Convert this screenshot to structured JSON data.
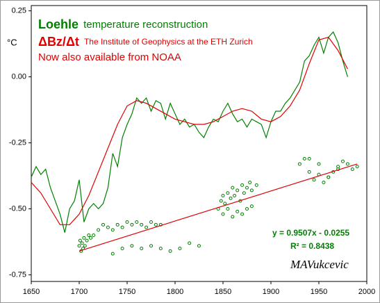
{
  "chart_data": {
    "type": "line",
    "ylabel": "°C",
    "xlim": [
      1650,
      2000
    ],
    "ylim": [
      -0.775,
      0.27
    ],
    "xticks": [
      1650,
      1700,
      1750,
      1800,
      1850,
      1900,
      1950,
      2000
    ],
    "yticks": [
      0.25,
      {
        "value": 0,
        "label": "0.00"
      },
      -0.25,
      {
        "value": -0.5,
        "label": "-0.50"
      },
      -0.75
    ],
    "annotations": [
      "temperature reconstruction",
      "The Institute of Geophysics at the ETH Zurich",
      "Now also available from NOAA",
      "y = 0.9507x - 0.0255",
      "R² = 0.8438",
      "MAVukcevic"
    ],
    "series": [
      {
        "name": "Loehle",
        "type": "line",
        "color": "#008000",
        "x": [
          1650,
          1655,
          1660,
          1665,
          1670,
          1675,
          1680,
          1685,
          1690,
          1695,
          1700,
          1705,
          1710,
          1715,
          1720,
          1725,
          1730,
          1735,
          1740,
          1745,
          1750,
          1755,
          1760,
          1765,
          1770,
          1775,
          1780,
          1785,
          1790,
          1795,
          1800,
          1805,
          1810,
          1815,
          1820,
          1825,
          1830,
          1835,
          1840,
          1845,
          1850,
          1855,
          1860,
          1865,
          1870,
          1875,
          1880,
          1885,
          1890,
          1895,
          1900,
          1905,
          1910,
          1915,
          1920,
          1925,
          1930,
          1935,
          1940,
          1945,
          1950,
          1955,
          1960,
          1965,
          1970,
          1975,
          1980
        ],
        "values": [
          -0.38,
          -0.34,
          -0.37,
          -0.35,
          -0.42,
          -0.47,
          -0.52,
          -0.59,
          -0.5,
          -0.47,
          -0.39,
          -0.55,
          -0.5,
          -0.48,
          -0.5,
          -0.48,
          -0.42,
          -0.29,
          -0.34,
          -0.23,
          -0.18,
          -0.14,
          -0.08,
          -0.1,
          -0.08,
          -0.13,
          -0.09,
          -0.1,
          -0.16,
          -0.1,
          -0.14,
          -0.18,
          -0.16,
          -0.19,
          -0.18,
          -0.21,
          -0.23,
          -0.19,
          -0.16,
          -0.17,
          -0.13,
          -0.1,
          -0.14,
          -0.17,
          -0.16,
          -0.19,
          -0.16,
          -0.17,
          -0.18,
          -0.23,
          -0.17,
          -0.13,
          -0.13,
          -0.1,
          -0.08,
          -0.05,
          -0.02,
          0.06,
          0.08,
          0.12,
          0.15,
          0.09,
          0.15,
          0.17,
          0.13,
          0.06,
          0.0
        ]
      },
      {
        "name": "ΔBz/Δt",
        "type": "line",
        "color": "#e00000",
        "x": [
          1650,
          1660,
          1670,
          1680,
          1690,
          1700,
          1710,
          1720,
          1730,
          1740,
          1750,
          1760,
          1770,
          1780,
          1790,
          1800,
          1810,
          1820,
          1830,
          1840,
          1850,
          1860,
          1870,
          1880,
          1890,
          1900,
          1910,
          1920,
          1930,
          1940,
          1950,
          1960,
          1970,
          1980
        ],
        "values": [
          -0.4,
          -0.44,
          -0.5,
          -0.56,
          -0.56,
          -0.52,
          -0.45,
          -0.36,
          -0.27,
          -0.18,
          -0.11,
          -0.09,
          -0.1,
          -0.12,
          -0.14,
          -0.16,
          -0.17,
          -0.18,
          -0.18,
          -0.17,
          -0.15,
          -0.13,
          -0.12,
          -0.13,
          -0.16,
          -0.17,
          -0.15,
          -0.11,
          -0.05,
          0.05,
          0.14,
          0.15,
          0.1,
          0.03
        ]
      },
      {
        "type": "scatter",
        "color": "#008000",
        "x": [
          1700,
          1701,
          1702,
          1703,
          1704,
          1705,
          1706,
          1708,
          1710,
          1712,
          1715,
          1720,
          1725,
          1730,
          1735,
          1740,
          1745,
          1750,
          1755,
          1760,
          1765,
          1770,
          1775,
          1780,
          1785,
          1735,
          1745,
          1755,
          1765,
          1775,
          1785,
          1795,
          1805,
          1815,
          1825,
          1845,
          1848,
          1850,
          1852,
          1855,
          1858,
          1860,
          1862,
          1865,
          1868,
          1870,
          1872,
          1875,
          1878,
          1880,
          1885,
          1850,
          1855,
          1860,
          1865,
          1870,
          1875,
          1880,
          1930,
          1935,
          1940,
          1945,
          1950,
          1955,
          1960,
          1965,
          1970,
          1975,
          1980,
          1985,
          1990,
          1940,
          1950,
          1960,
          1970
        ],
        "values": [
          -0.64,
          -0.62,
          -0.66,
          -0.63,
          -0.65,
          -0.61,
          -0.64,
          -0.62,
          -0.6,
          -0.61,
          -0.6,
          -0.58,
          -0.56,
          -0.57,
          -0.58,
          -0.56,
          -0.57,
          -0.55,
          -0.56,
          -0.55,
          -0.56,
          -0.57,
          -0.55,
          -0.56,
          -0.56,
          -0.67,
          -0.65,
          -0.64,
          -0.65,
          -0.64,
          -0.65,
          -0.66,
          -0.65,
          -0.63,
          -0.64,
          -0.5,
          -0.47,
          -0.45,
          -0.48,
          -0.44,
          -0.46,
          -0.42,
          -0.45,
          -0.43,
          -0.47,
          -0.41,
          -0.44,
          -0.42,
          -0.4,
          -0.43,
          -0.41,
          -0.52,
          -0.5,
          -0.53,
          -0.51,
          -0.52,
          -0.5,
          -0.49,
          -0.33,
          -0.31,
          -0.36,
          -0.39,
          -0.37,
          -0.4,
          -0.38,
          -0.36,
          -0.34,
          -0.32,
          -0.33,
          -0.35,
          -0.34,
          -0.31,
          -0.33,
          -0.38,
          -0.35
        ]
      },
      {
        "type": "line",
        "color": "#e00000",
        "x": [
          1700,
          1990
        ],
        "values": [
          -0.66,
          -0.33
        ]
      }
    ]
  }
}
